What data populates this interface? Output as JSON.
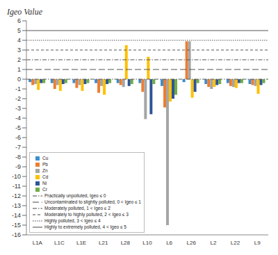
{
  "chart_data": {
    "type": "bar",
    "y_label": "Igeo Value",
    "categories": [
      "L1A",
      "L1C",
      "L1E",
      "L21",
      "L28",
      "L10",
      "L6",
      "L26",
      "L2",
      "L22",
      "L9"
    ],
    "series": [
      {
        "name": "Cu",
        "color": "#3b8fd0",
        "values": [
          -0.3,
          -0.4,
          -0.4,
          -0.4,
          -0.4,
          -0.4,
          -0.7,
          -0.3,
          -0.5,
          -0.4,
          -0.5
        ]
      },
      {
        "name": "Pb",
        "color": "#ed7d31",
        "values": [
          -0.6,
          -1.0,
          -0.9,
          -1.4,
          -0.6,
          -1.3,
          -2.9,
          3.9,
          -0.8,
          -0.7,
          -0.6
        ]
      },
      {
        "name": "Zn",
        "color": "#a5a5a5",
        "values": [
          -0.5,
          -0.6,
          -0.6,
          -0.7,
          -0.8,
          -4.1,
          -15,
          3.9,
          -1.0,
          -0.8,
          -0.7
        ]
      },
      {
        "name": "Cd",
        "color": "#ffc000",
        "values": [
          -1.1,
          -1.2,
          -1.2,
          -1.6,
          3.5,
          2.3,
          -2.3,
          -1.9,
          -0.8,
          -0.9,
          -1.5
        ]
      },
      {
        "name": "Ni",
        "color": "#2f5597",
        "values": [
          -0.4,
          -0.5,
          -0.5,
          -0.5,
          -0.7,
          -3.6,
          -2.0,
          -1.3,
          -0.6,
          -0.4,
          -0.6
        ]
      },
      {
        "name": "Cr",
        "color": "#70ad47",
        "values": [
          -0.4,
          -0.4,
          -0.4,
          -0.4,
          -0.5,
          -0.5,
          -1.6,
          -0.4,
          -0.5,
          -0.4,
          -0.4
        ]
      }
    ],
    "thresholds": [
      {
        "value": 0,
        "label": "Practically unpolluted, Igeo ≤ 0",
        "line_style": "dashdot"
      },
      {
        "value": 1,
        "label": "Uncontaminated to slightly polluted, 0 < Igeo ≤ 1",
        "line_style": "longdash"
      },
      {
        "value": 2,
        "label": "Moderately polluted, 1 < Igeo ≤ 2",
        "line_style": "dashdot"
      },
      {
        "value": 3,
        "label": "Moderately to highly polluted, 2 < Igeo ≤ 3",
        "line_style": "dashed"
      },
      {
        "value": 4,
        "label": "Highly polluted, 3 < Igeo ≤ 4",
        "line_style": "dotted"
      },
      {
        "value": 5,
        "label": "Highly to extremely polluted, 4 < Igeo ≤ 5",
        "line_style": "solid"
      }
    ],
    "ylim": [
      -16,
      6
    ],
    "yticks": [
      -16,
      -15,
      -14,
      -13,
      -12,
      -11,
      -10,
      -9,
      -8,
      -7,
      -6,
      -5,
      -4,
      -3,
      -2,
      -1,
      0,
      1,
      2,
      3,
      4,
      5,
      6
    ],
    "grid": false,
    "legend": "bottom-left"
  }
}
